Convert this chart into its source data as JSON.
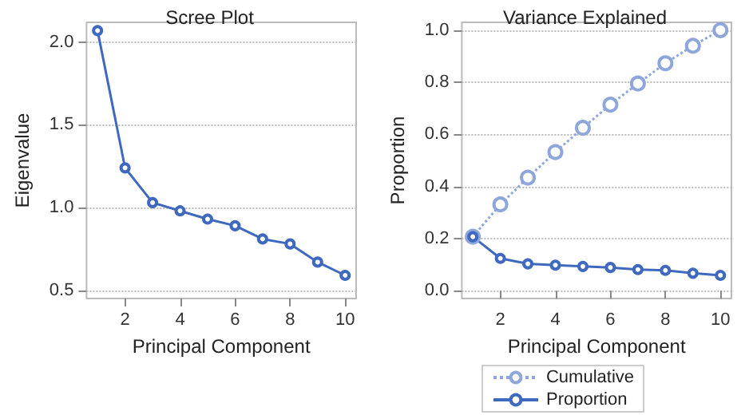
{
  "chart_data": [
    {
      "type": "line",
      "title": "Scree Plot",
      "xlabel": "Principal Component",
      "ylabel": "Eigenvalue",
      "x": [
        1,
        2,
        3,
        4,
        5,
        6,
        7,
        8,
        9,
        10
      ],
      "series": [
        {
          "color": "#3f68bf",
          "values": [
            2.07,
            1.24,
            1.03,
            0.98,
            0.93,
            0.89,
            0.81,
            0.78,
            0.67,
            0.59
          ]
        }
      ],
      "xlim": [
        0.6,
        10.4
      ],
      "xticks": [
        2,
        4,
        6,
        8,
        10
      ],
      "ylim": [
        0.45,
        2.12
      ],
      "yticks": [
        {
          "value": 0.5,
          "label": "0.5"
        },
        {
          "value": 1,
          "label": "1.0"
        },
        {
          "value": 1.5,
          "label": "1.5"
        },
        {
          "value": 2,
          "label": "2.0"
        }
      ],
      "grid": "y",
      "marker": "circle",
      "line_style": "solid",
      "legend": false
    },
    {
      "type": "line",
      "title": "Variance Explained",
      "xlabel": "Principal Component",
      "ylabel": "Proportion",
      "x": [
        1,
        2,
        3,
        4,
        5,
        6,
        7,
        8,
        9,
        10
      ],
      "series": [
        {
          "name": "Cumulative",
          "color": "#8ea6da",
          "line_style": "dotted",
          "values": [
            0.207,
            0.331,
            0.434,
            0.532,
            0.625,
            0.714,
            0.795,
            0.873,
            0.94,
            1.0
          ]
        },
        {
          "name": "Proportion",
          "color": "#3f68bf",
          "line_style": "solid",
          "values": [
            0.207,
            0.124,
            0.103,
            0.098,
            0.093,
            0.089,
            0.081,
            0.078,
            0.067,
            0.059
          ]
        }
      ],
      "xlim": [
        0.6,
        10.4
      ],
      "xticks": [
        2,
        4,
        6,
        8,
        10
      ],
      "ylim": [
        -0.03,
        1.03
      ],
      "yticks": [
        {
          "value": 0,
          "label": "0.0"
        },
        {
          "value": 0.2,
          "label": "0.2"
        },
        {
          "value": 0.4,
          "label": "0.4"
        },
        {
          "value": 0.6,
          "label": "0.6"
        },
        {
          "value": 0.8,
          "label": "0.8"
        },
        {
          "value": 1,
          "label": "1.0"
        }
      ],
      "grid": "y",
      "marker": "circle",
      "legend": "bottom"
    }
  ]
}
